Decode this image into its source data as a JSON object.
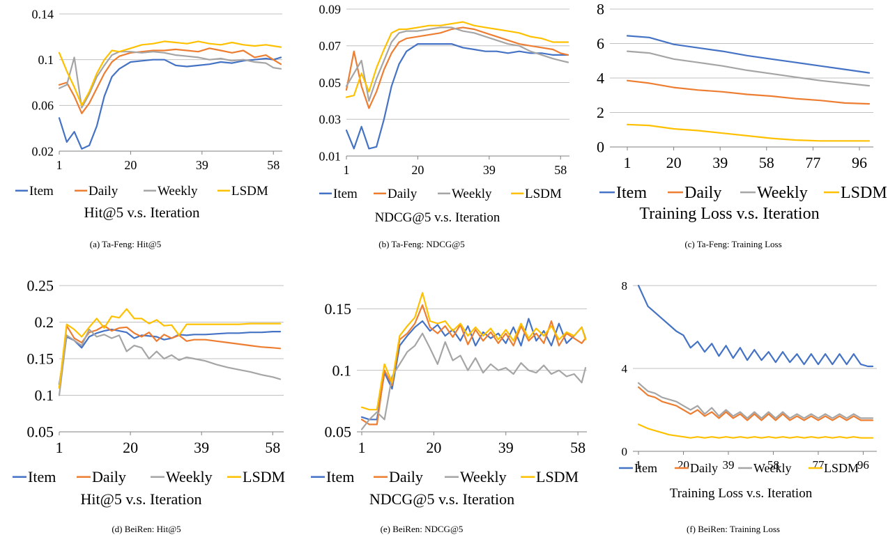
{
  "colors": {
    "Item": "#4472c4",
    "Daily": "#ed7d31",
    "Weekly": "#a5a5a5",
    "LSDM": "#ffc000"
  },
  "chart_data": [
    {
      "type": "line",
      "caption": "(a)  Ta-Feng: Hit@5",
      "title": "Hit@5 v.s. Iteration",
      "xlabel": "",
      "ylabel": "",
      "x_ticks": [
        "1",
        "20",
        "39",
        "58"
      ],
      "x": [
        1,
        3,
        5,
        7,
        9,
        11,
        13,
        15,
        17,
        20,
        23,
        26,
        29,
        32,
        35,
        38,
        41,
        44,
        47,
        50,
        53,
        56,
        58,
        60
      ],
      "y_ticks": [
        "0.02",
        "0.06",
        "0.1",
        "0.14"
      ],
      "ylim": [
        0.02,
        0.14
      ],
      "grid": true,
      "legend": "bottom",
      "series": [
        {
          "name": "Item",
          "values": [
            0.049,
            0.028,
            0.037,
            0.022,
            0.025,
            0.042,
            0.068,
            0.085,
            0.092,
            0.098,
            0.099,
            0.1,
            0.1,
            0.095,
            0.094,
            0.095,
            0.096,
            0.098,
            0.097,
            0.099,
            0.1,
            0.101,
            0.1,
            0.102
          ]
        },
        {
          "name": "Daily",
          "values": [
            0.078,
            0.08,
            0.068,
            0.053,
            0.062,
            0.075,
            0.088,
            0.098,
            0.103,
            0.106,
            0.107,
            0.108,
            0.108,
            0.109,
            0.108,
            0.107,
            0.11,
            0.108,
            0.106,
            0.108,
            0.102,
            0.104,
            0.1,
            0.096
          ]
        },
        {
          "name": "Weekly",
          "values": [
            0.075,
            0.078,
            0.102,
            0.058,
            0.07,
            0.085,
            0.095,
            0.104,
            0.107,
            0.107,
            0.106,
            0.107,
            0.106,
            0.104,
            0.103,
            0.102,
            0.1,
            0.101,
            0.099,
            0.1,
            0.098,
            0.097,
            0.093,
            0.092
          ]
        },
        {
          "name": "LSDM",
          "values": [
            0.106,
            0.09,
            0.076,
            0.06,
            0.072,
            0.088,
            0.1,
            0.108,
            0.107,
            0.11,
            0.113,
            0.114,
            0.116,
            0.115,
            0.114,
            0.116,
            0.114,
            0.113,
            0.115,
            0.113,
            0.112,
            0.113,
            0.112,
            0.111
          ]
        }
      ]
    },
    {
      "type": "line",
      "caption": "(b)  Ta-Feng: NDCG@5",
      "title": "NDCG@5 v.s. Iteration",
      "xlabel": "",
      "ylabel": "",
      "x_ticks": [
        "1",
        "20",
        "39",
        "58"
      ],
      "x": [
        1,
        3,
        5,
        7,
        9,
        11,
        13,
        15,
        17,
        20,
        23,
        26,
        29,
        32,
        35,
        38,
        41,
        44,
        47,
        50,
        53,
        56,
        58,
        60
      ],
      "y_ticks": [
        "0.01",
        "0.03",
        "0.05",
        "0.07",
        "0.09"
      ],
      "ylim": [
        0.01,
        0.09
      ],
      "grid": true,
      "legend": "bottom",
      "series": [
        {
          "name": "Item",
          "values": [
            0.024,
            0.014,
            0.026,
            0.014,
            0.015,
            0.03,
            0.048,
            0.06,
            0.067,
            0.071,
            0.071,
            0.071,
            0.071,
            0.069,
            0.068,
            0.067,
            0.067,
            0.066,
            0.067,
            0.066,
            0.066,
            0.065,
            0.065,
            0.065
          ]
        },
        {
          "name": "Daily",
          "values": [
            0.046,
            0.067,
            0.048,
            0.036,
            0.045,
            0.057,
            0.066,
            0.072,
            0.074,
            0.075,
            0.076,
            0.077,
            0.079,
            0.08,
            0.079,
            0.077,
            0.075,
            0.073,
            0.071,
            0.07,
            0.069,
            0.068,
            0.066,
            0.065
          ]
        },
        {
          "name": "Weekly",
          "values": [
            0.048,
            0.055,
            0.062,
            0.04,
            0.052,
            0.062,
            0.072,
            0.077,
            0.078,
            0.078,
            0.079,
            0.08,
            0.08,
            0.078,
            0.077,
            0.075,
            0.073,
            0.071,
            0.07,
            0.067,
            0.065,
            0.063,
            0.062,
            0.061
          ]
        },
        {
          "name": "LSDM",
          "values": [
            0.042,
            0.043,
            0.055,
            0.045,
            0.058,
            0.068,
            0.077,
            0.079,
            0.079,
            0.08,
            0.081,
            0.081,
            0.082,
            0.083,
            0.081,
            0.08,
            0.079,
            0.078,
            0.077,
            0.075,
            0.074,
            0.072,
            0.072,
            0.072
          ]
        }
      ]
    },
    {
      "type": "line",
      "caption": "(c)  Ta-Feng: Training Loss",
      "title": "Training Loss v.s. Iteration",
      "xlabel": "",
      "ylabel": "",
      "x_ticks": [
        "1",
        "20",
        "39",
        "58",
        "77",
        "96"
      ],
      "x": [
        1,
        10,
        20,
        30,
        40,
        50,
        60,
        70,
        80,
        90,
        100
      ],
      "y_ticks": [
        "0",
        "2",
        "4",
        "6",
        "8"
      ],
      "ylim": [
        0,
        8
      ],
      "grid": true,
      "legend": "bottom",
      "series": [
        {
          "name": "Item",
          "values": [
            6.45,
            6.35,
            5.95,
            5.75,
            5.55,
            5.3,
            5.1,
            4.9,
            4.7,
            4.5,
            4.3
          ]
        },
        {
          "name": "Daily",
          "values": [
            3.85,
            3.7,
            3.45,
            3.3,
            3.2,
            3.05,
            2.95,
            2.8,
            2.7,
            2.55,
            2.5
          ]
        },
        {
          "name": "Weekly",
          "values": [
            5.55,
            5.45,
            5.1,
            4.9,
            4.7,
            4.45,
            4.25,
            4.05,
            3.85,
            3.7,
            3.55
          ]
        },
        {
          "name": "LSDM",
          "values": [
            1.3,
            1.25,
            1.05,
            0.95,
            0.8,
            0.65,
            0.5,
            0.4,
            0.35,
            0.35,
            0.35
          ]
        }
      ]
    },
    {
      "type": "line",
      "caption": "(d)  BeiRen: Hit@5",
      "title": "Hit@5 v.s. Iteration",
      "xlabel": "",
      "ylabel": "",
      "x_ticks": [
        "1",
        "20",
        "39",
        "58"
      ],
      "x": [
        1,
        3,
        5,
        7,
        9,
        11,
        13,
        15,
        17,
        19,
        21,
        23,
        25,
        27,
        29,
        31,
        33,
        35,
        37,
        40,
        43,
        46,
        49,
        52,
        55,
        58,
        60
      ],
      "y_ticks": [
        "0.05",
        "0.1",
        "0.15",
        "0.2",
        "0.25"
      ],
      "ylim": [
        0.05,
        0.25
      ],
      "grid": true,
      "legend": "bottom",
      "series": [
        {
          "name": "Item",
          "values": [
            0.115,
            0.18,
            0.175,
            0.165,
            0.18,
            0.185,
            0.188,
            0.19,
            0.188,
            0.186,
            0.178,
            0.182,
            0.181,
            0.18,
            0.176,
            0.178,
            0.183,
            0.182,
            0.183,
            0.183,
            0.184,
            0.185,
            0.185,
            0.186,
            0.186,
            0.187,
            0.187
          ]
        },
        {
          "name": "Daily",
          "values": [
            0.11,
            0.195,
            0.178,
            0.172,
            0.186,
            0.189,
            0.195,
            0.188,
            0.192,
            0.193,
            0.185,
            0.18,
            0.186,
            0.174,
            0.183,
            0.178,
            0.182,
            0.174,
            0.176,
            0.176,
            0.174,
            0.172,
            0.17,
            0.168,
            0.166,
            0.165,
            0.164
          ]
        },
        {
          "name": "Weekly",
          "values": [
            0.1,
            0.182,
            0.175,
            0.168,
            0.19,
            0.18,
            0.183,
            0.178,
            0.182,
            0.16,
            0.168,
            0.165,
            0.15,
            0.16,
            0.15,
            0.155,
            0.148,
            0.152,
            0.15,
            0.147,
            0.142,
            0.138,
            0.135,
            0.132,
            0.128,
            0.125,
            0.122
          ]
        },
        {
          "name": "LSDM",
          "values": [
            0.11,
            0.197,
            0.19,
            0.18,
            0.193,
            0.205,
            0.192,
            0.208,
            0.206,
            0.218,
            0.205,
            0.205,
            0.198,
            0.203,
            0.195,
            0.196,
            0.182,
            0.197,
            0.197,
            0.197,
            0.197,
            0.197,
            0.197,
            0.198,
            0.198,
            0.198,
            0.198
          ]
        }
      ]
    },
    {
      "type": "line",
      "caption": "(e)  BeiRen: NDCG@5",
      "title": "NDCG@5 v.s. Iteration",
      "xlabel": "",
      "ylabel": "",
      "x_ticks": [
        "1",
        "20",
        "39",
        "58"
      ],
      "x": [
        1,
        3,
        5,
        7,
        9,
        11,
        13,
        15,
        17,
        19,
        21,
        23,
        25,
        27,
        29,
        31,
        33,
        35,
        37,
        39,
        41,
        43,
        45,
        47,
        49,
        51,
        53,
        55,
        57,
        59,
        60
      ],
      "y_ticks": [
        "0.05",
        "0.1",
        "0.15"
      ],
      "ylim": [
        0.05,
        0.17
      ],
      "grid": true,
      "legend": "bottom",
      "series": [
        {
          "name": "Item",
          "values": [
            0.062,
            0.06,
            0.06,
            0.098,
            0.085,
            0.12,
            0.128,
            0.135,
            0.14,
            0.132,
            0.137,
            0.128,
            0.133,
            0.124,
            0.136,
            0.12,
            0.131,
            0.126,
            0.13,
            0.122,
            0.135,
            0.12,
            0.142,
            0.124,
            0.132,
            0.12,
            0.138,
            0.122,
            0.128,
            0.135,
            0.126
          ]
        },
        {
          "name": "Daily",
          "values": [
            0.06,
            0.056,
            0.056,
            0.1,
            0.088,
            0.125,
            0.13,
            0.138,
            0.153,
            0.135,
            0.13,
            0.136,
            0.127,
            0.137,
            0.121,
            0.133,
            0.124,
            0.131,
            0.122,
            0.13,
            0.12,
            0.136,
            0.124,
            0.13,
            0.122,
            0.14,
            0.12,
            0.13,
            0.126,
            0.122,
            0.126
          ]
        },
        {
          "name": "Weekly",
          "values": [
            0.052,
            0.06,
            0.066,
            0.06,
            0.095,
            0.105,
            0.115,
            0.12,
            0.13,
            0.118,
            0.105,
            0.123,
            0.108,
            0.112,
            0.1,
            0.11,
            0.098,
            0.105,
            0.1,
            0.102,
            0.097,
            0.106,
            0.1,
            0.098,
            0.104,
            0.097,
            0.1,
            0.095,
            0.097,
            0.09,
            0.102
          ]
        },
        {
          "name": "LSDM",
          "values": [
            0.07,
            0.068,
            0.068,
            0.105,
            0.09,
            0.128,
            0.136,
            0.143,
            0.163,
            0.14,
            0.138,
            0.14,
            0.132,
            0.138,
            0.128,
            0.135,
            0.128,
            0.134,
            0.125,
            0.133,
            0.124,
            0.138,
            0.126,
            0.134,
            0.128,
            0.136,
            0.125,
            0.131,
            0.128,
            0.135,
            0.125
          ]
        }
      ]
    },
    {
      "type": "line",
      "caption": "(f)  BeiRen: Training Loss",
      "title": "Training Loss v.s. Iteration",
      "xlabel": "",
      "ylabel": "",
      "x_ticks": [
        "1",
        "20",
        "39",
        "58",
        "77",
        "96"
      ],
      "x": [
        1,
        3,
        5,
        8,
        11,
        14,
        17,
        20,
        23,
        26,
        29,
        32,
        35,
        38,
        41,
        44,
        47,
        50,
        53,
        56,
        59,
        62,
        65,
        68,
        71,
        74,
        77,
        80,
        83,
        86,
        89,
        92,
        95,
        98,
        100
      ],
      "y_ticks": [
        "0",
        "4",
        "8"
      ],
      "ylim": [
        0,
        8
      ],
      "grid": true,
      "legend": "bottom",
      "series": [
        {
          "name": "Item",
          "values": [
            8.0,
            7.5,
            7.0,
            6.7,
            6.4,
            6.1,
            5.8,
            5.6,
            5.0,
            5.3,
            4.8,
            5.2,
            4.6,
            5.1,
            4.5,
            5.0,
            4.4,
            4.9,
            4.4,
            4.8,
            4.3,
            4.8,
            4.3,
            4.7,
            4.2,
            4.7,
            4.2,
            4.7,
            4.2,
            4.7,
            4.2,
            4.7,
            4.2,
            4.1,
            4.1
          ]
        },
        {
          "name": "Daily",
          "values": [
            3.1,
            2.9,
            2.7,
            2.6,
            2.4,
            2.3,
            2.2,
            2.0,
            1.8,
            2.0,
            1.7,
            1.9,
            1.6,
            1.9,
            1.6,
            1.8,
            1.5,
            1.8,
            1.5,
            1.8,
            1.5,
            1.8,
            1.5,
            1.7,
            1.5,
            1.7,
            1.5,
            1.7,
            1.5,
            1.7,
            1.5,
            1.7,
            1.5,
            1.5,
            1.5
          ]
        },
        {
          "name": "Weekly",
          "values": [
            3.3,
            3.1,
            2.9,
            2.8,
            2.6,
            2.5,
            2.4,
            2.2,
            2.0,
            2.2,
            1.8,
            2.1,
            1.7,
            2.0,
            1.7,
            1.9,
            1.6,
            1.9,
            1.6,
            1.9,
            1.6,
            1.9,
            1.6,
            1.8,
            1.6,
            1.8,
            1.6,
            1.8,
            1.6,
            1.8,
            1.6,
            1.8,
            1.6,
            1.6,
            1.6
          ]
        },
        {
          "name": "LSDM",
          "values": [
            1.3,
            1.2,
            1.1,
            1.0,
            0.9,
            0.8,
            0.75,
            0.7,
            0.65,
            0.7,
            0.65,
            0.7,
            0.65,
            0.7,
            0.65,
            0.7,
            0.65,
            0.7,
            0.65,
            0.7,
            0.65,
            0.7,
            0.65,
            0.7,
            0.65,
            0.7,
            0.65,
            0.7,
            0.65,
            0.7,
            0.65,
            0.7,
            0.65,
            0.65,
            0.65
          ]
        }
      ]
    }
  ]
}
